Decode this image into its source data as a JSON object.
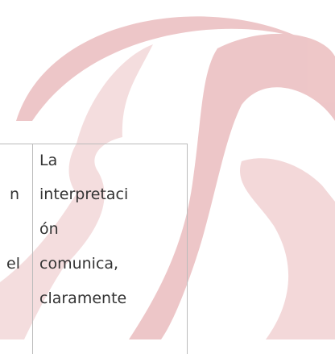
{
  "table": {
    "rows": [
      {
        "cells": [
          {
            "lines": [
              "n",
              "el"
            ]
          },
          {
            "lines": [
              "La",
              "interpretaci",
              "ón",
              "comunica,",
              "claramente"
            ]
          }
        ]
      }
    ]
  }
}
